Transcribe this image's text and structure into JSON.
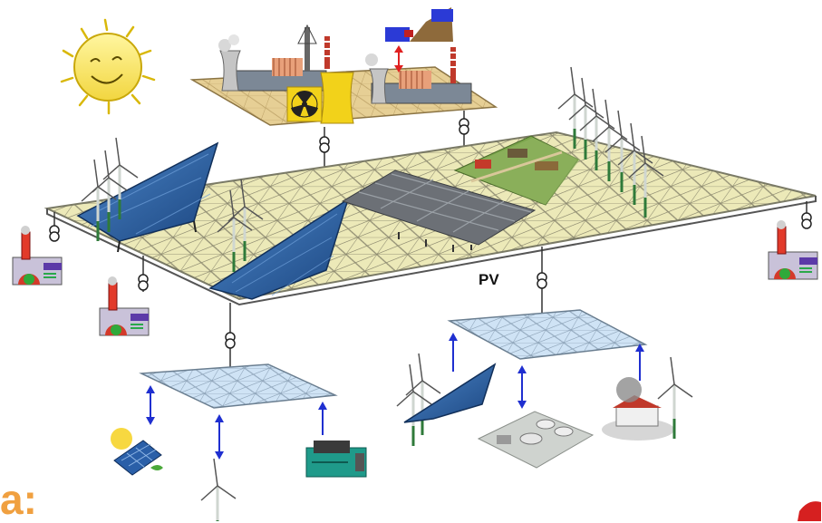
{
  "labels": {
    "pv": "PV",
    "corner_text": "a:"
  },
  "colors": {
    "grid_fill": "#ece9b8",
    "grid_line": "#8a8a7a",
    "lv_grid_fill": "#cfe3f5",
    "arrow_red": "#e02020",
    "arrow_blue": "#1f2fd0",
    "panel_blue": "#2a5fa8",
    "sun_yellow": "#f7e76a",
    "turbine_green": "#2f7a3a"
  },
  "icons": [
    "sun-icon",
    "power-plant-icon",
    "nuclear-icon",
    "hydro-storage-icon",
    "wind-turbine-icon",
    "solar-panel-icon",
    "transformer-icon",
    "chp-plant-icon",
    "farm-icon",
    "biogas-plant-icon",
    "house-icon",
    "diesel-generator-icon"
  ]
}
